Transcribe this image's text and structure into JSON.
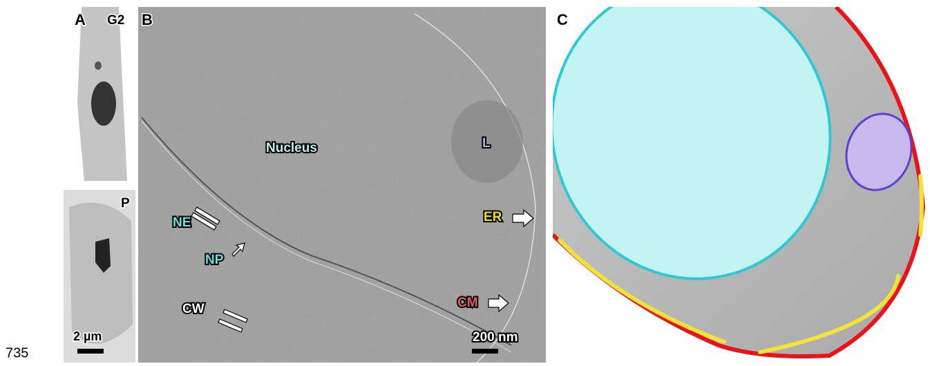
{
  "figure_number": "735",
  "panel_a": {
    "label": "A",
    "top_label": "G2",
    "bottom_label": "P",
    "scale_bar": "2 µm"
  },
  "panel_b": {
    "label": "B",
    "nucleus": "Nucleus",
    "lipid": "L",
    "ne": "NE",
    "np": "NP",
    "er": "ER",
    "cm": "CM",
    "cw": "CW",
    "scale_bar": "200 nm"
  },
  "panel_c": {
    "label": "C"
  }
}
